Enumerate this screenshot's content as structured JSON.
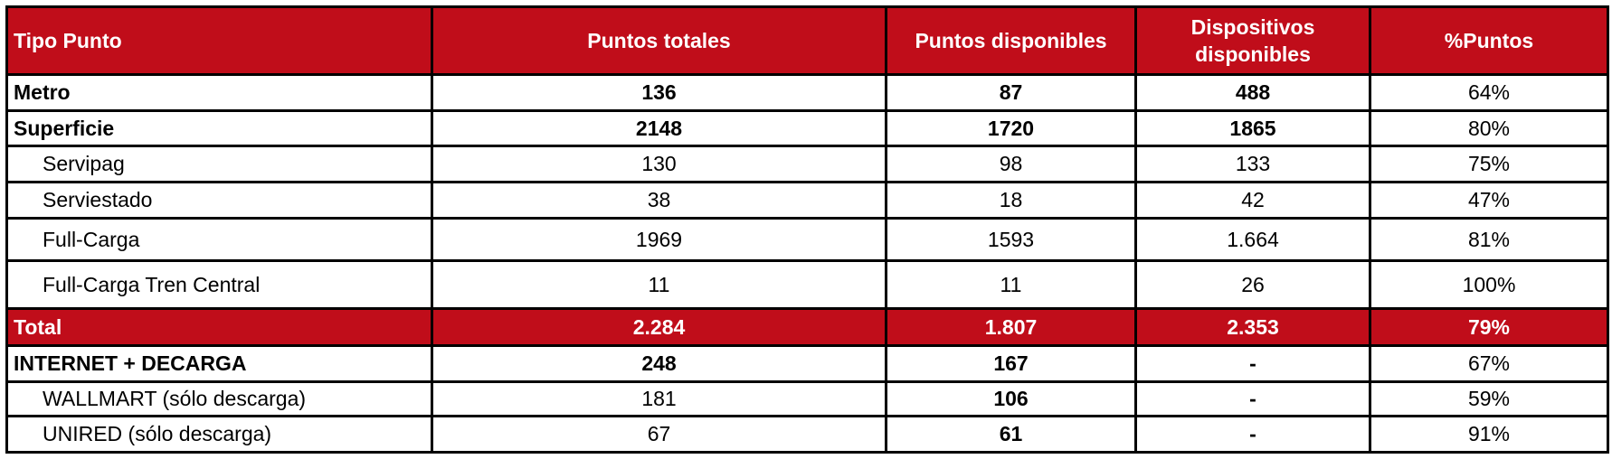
{
  "table": {
    "header": [
      "Tipo Punto",
      "Puntos totales",
      "Puntos disponibles",
      "Dispositivos disponibles",
      "%Puntos"
    ],
    "rows": [
      [
        "Metro",
        "136",
        "87",
        "488",
        "64%"
      ],
      [
        "Superficie",
        "2148",
        "1720",
        "1865",
        "80%"
      ],
      [
        "Servipag",
        "130",
        "98",
        "133",
        "75%"
      ],
      [
        "Serviestado",
        "38",
        "18",
        "42",
        "47%"
      ],
      [
        "Full-Carga",
        "1969",
        "1593",
        "1.664",
        "81%"
      ],
      [
        "Full-Carga Tren Central",
        "11",
        "11",
        "26",
        "100%"
      ],
      [
        "Total",
        "2.284",
        "1.807",
        "2.353",
        "79%"
      ],
      [
        "INTERNET + DECARGA",
        "248",
        "167",
        "-",
        "67%"
      ],
      [
        "WALLMART (sólo descarga)",
        "181",
        "106",
        "-",
        "59%"
      ],
      [
        "UNIRED (sólo descarga)",
        "67",
        "61",
        "-",
        "91%"
      ]
    ]
  }
}
